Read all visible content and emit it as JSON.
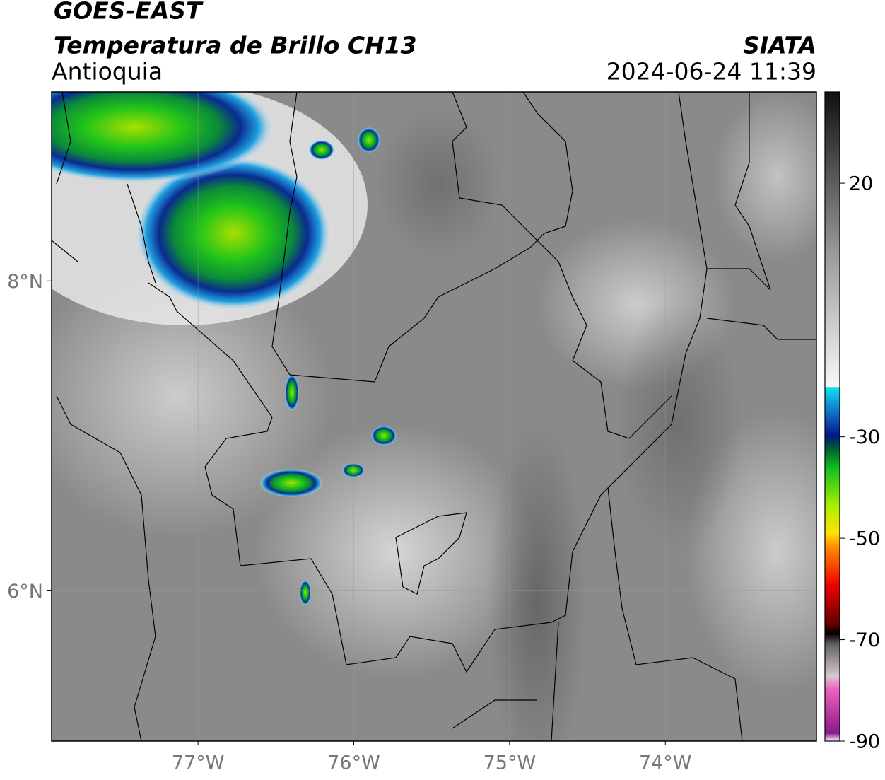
{
  "header": {
    "title": "GOES-EAST",
    "subtitle": "Temperatura de Brillo CH13",
    "region": "Antioquia",
    "source": "SIATA",
    "timestamp": "2024-06-24 11:39"
  },
  "map": {
    "xlim": [
      -77.94,
      -73.03
    ],
    "ylim": [
      5.03,
      9.22
    ],
    "xticks": [
      {
        "value": -77,
        "label": "77°W"
      },
      {
        "value": -76,
        "label": "76°W"
      },
      {
        "value": -75,
        "label": "75°W"
      },
      {
        "value": -74,
        "label": "74°W"
      }
    ],
    "yticks": [
      {
        "value": 8,
        "label": "8°N"
      },
      {
        "value": 6,
        "label": "6°N"
      }
    ]
  },
  "colorbar": {
    "lim": [
      -90,
      38
    ],
    "ticks": [
      20,
      -30,
      -50,
      -70,
      -90
    ]
  }
}
